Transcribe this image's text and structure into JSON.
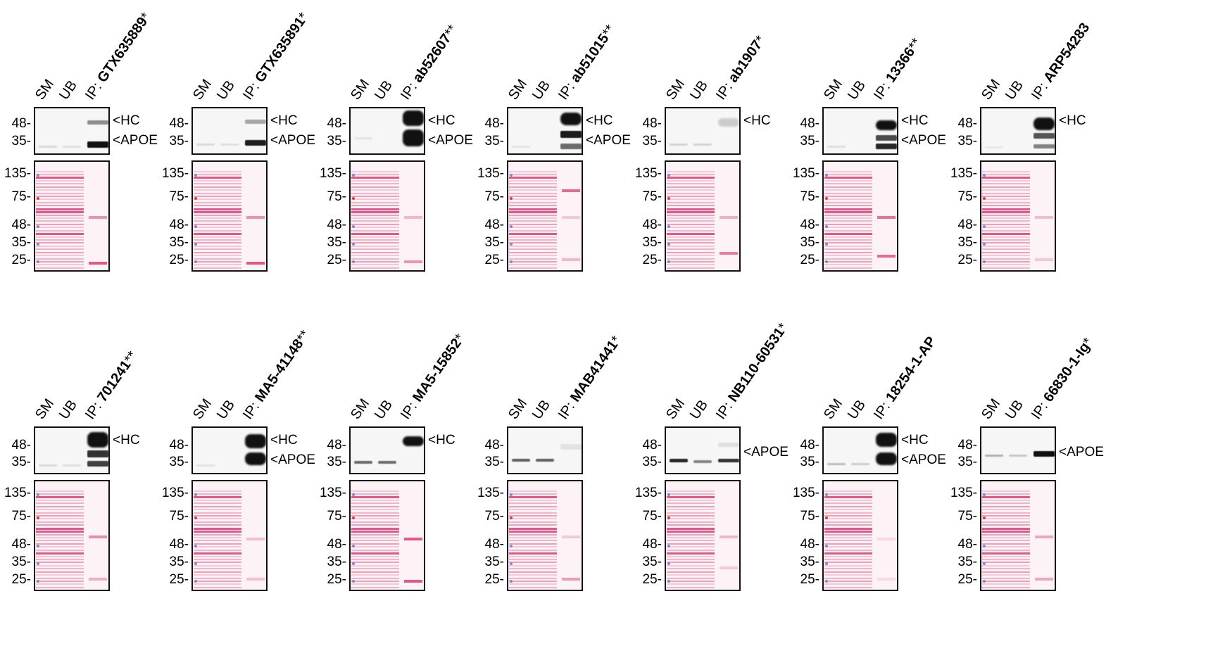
{
  "lane_labels": [
    "SM",
    "UB",
    "IP:"
  ],
  "markers": {
    "western": [
      "48-",
      "35-"
    ],
    "stain": [
      "135-",
      "75-",
      "48-",
      "35-",
      "25-"
    ]
  },
  "annotations": {
    "hc": "<HC",
    "apoe": "<APOE"
  },
  "colors": {
    "frame": "#111111",
    "stain_band": "#e0467e",
    "stain_bg": "#fdf3f6",
    "wb_bg": "#f6f6f6",
    "wb_band": "#111111"
  },
  "panels": [
    {
      "antibody": "GTX635889",
      "suffix": "*",
      "annotations": [
        "<HC",
        "<APOE"
      ]
    },
    {
      "antibody": "GTX635891",
      "suffix": "*",
      "annotations": [
        "<HC",
        "<APOE"
      ]
    },
    {
      "antibody": "ab52607",
      "suffix": "**",
      "annotations": [
        "<HC",
        "<APOE"
      ]
    },
    {
      "antibody": "ab51015",
      "suffix": "**",
      "annotations": [
        "<HC",
        "<APOE"
      ]
    },
    {
      "antibody": "ab1907",
      "suffix": "*",
      "annotations": [
        "<HC"
      ]
    },
    {
      "antibody": "13366",
      "suffix": "**",
      "annotations": [
        "<HC",
        "<APOE"
      ]
    },
    {
      "antibody": "ARP54283",
      "suffix": "",
      "annotations": [
        "<HC"
      ]
    },
    {
      "antibody": "701241",
      "suffix": "**",
      "annotations": [
        "<HC"
      ]
    },
    {
      "antibody": "MA5-41148",
      "suffix": "**",
      "annotations": [
        "<HC",
        "<APOE"
      ]
    },
    {
      "antibody": "MA5-15852",
      "suffix": "*",
      "annotations": [
        "<HC"
      ]
    },
    {
      "antibody": "MAB41441",
      "suffix": "*",
      "annotations": []
    },
    {
      "antibody": "NB110-60531",
      "suffix": "*",
      "annotations": [
        "<APOE"
      ]
    },
    {
      "antibody": "18254-1-AP",
      "suffix": "",
      "annotations": [
        "<HC",
        "<APOE"
      ]
    },
    {
      "antibody": "66830-1-Ig",
      "suffix": "*",
      "annotations": [
        "<APOE"
      ]
    }
  ]
}
